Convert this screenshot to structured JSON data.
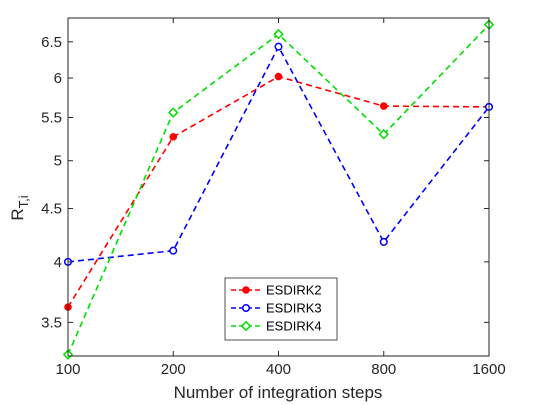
{
  "chart_data": {
    "type": "line",
    "title": "",
    "xlabel": "Number of integration steps",
    "ylabel": "R",
    "ylabel_subscript": "T,i",
    "x_scale": "log",
    "y_scale": "log",
    "x": [
      100,
      200,
      400,
      800,
      1600
    ],
    "x_tick_labels": [
      "100",
      "200",
      "400",
      "800",
      "1600"
    ],
    "y_ticks": [
      3.5,
      4,
      4.5,
      5,
      5.5,
      6,
      6.5
    ],
    "y_tick_labels": [
      "3.5",
      "4",
      "4.5",
      "5",
      "5.5",
      "6",
      "6.5"
    ],
    "xlim": [
      100,
      1600
    ],
    "ylim": [
      3.25,
      6.85
    ],
    "grid": false,
    "legend_position": "bottom-center",
    "series": [
      {
        "name": "ESDIRK2",
        "color": "#ff0000",
        "marker": "dot",
        "values": [
          3.62,
          5.27,
          6.02,
          5.64,
          5.63
        ]
      },
      {
        "name": "ESDIRK3",
        "color": "#0000ff",
        "marker": "circle",
        "values": [
          4.0,
          4.1,
          6.43,
          4.18,
          5.63
        ]
      },
      {
        "name": "ESDIRK4",
        "color": "#00dd00",
        "marker": "diamond",
        "values": [
          3.26,
          5.56,
          6.61,
          5.3,
          6.75
        ]
      }
    ]
  }
}
